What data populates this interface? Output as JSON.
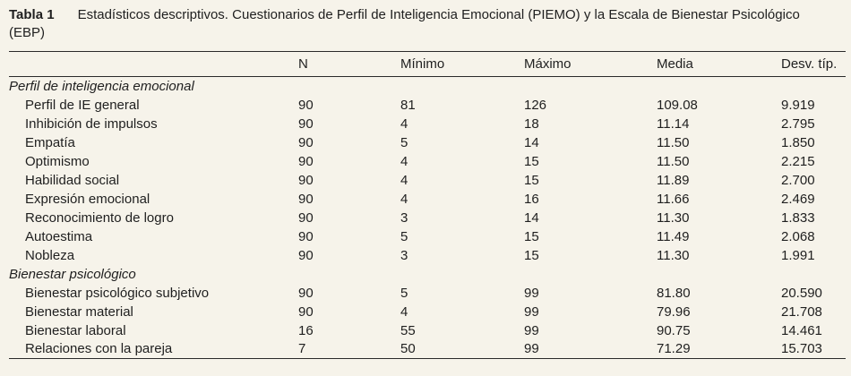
{
  "page": {
    "background_color": "#f6f3ea",
    "text_color": "#1f1f1f",
    "rule_color": "#2a2a2a"
  },
  "caption": {
    "label": "Tabla 1",
    "line1": "Estadísticos descriptivos. Cuestionarios de Perfil de Inteligencia Emocional (PIEMO) y la Escala de Bienestar Psicológico",
    "line2": "(EBP)"
  },
  "table": {
    "columns": [
      "N",
      "Mínimo",
      "Máximo",
      "Media",
      "Desv. típ."
    ],
    "sections": [
      {
        "label": "Perfil de inteligencia emocional",
        "rows": [
          [
            "Perfil de IE general",
            "90",
            "81",
            "126",
            "109.08",
            "9.919"
          ],
          [
            "Inhibición de impulsos",
            "90",
            "4",
            "18",
            "11.14",
            "2.795"
          ],
          [
            "Empatía",
            "90",
            "5",
            "14",
            "11.50",
            "1.850"
          ],
          [
            "Optimismo",
            "90",
            "4",
            "15",
            "11.50",
            "2.215"
          ],
          [
            "Habilidad social",
            "90",
            "4",
            "15",
            "11.89",
            "2.700"
          ],
          [
            "Expresión emocional",
            "90",
            "4",
            "16",
            "11.66",
            "2.469"
          ],
          [
            "Reconocimiento de logro",
            "90",
            "3",
            "14",
            "11.30",
            "1.833"
          ],
          [
            "Autoestima",
            "90",
            "5",
            "15",
            "11.49",
            "2.068"
          ],
          [
            "Nobleza",
            "90",
            "3",
            "15",
            "11.30",
            "1.991"
          ]
        ]
      },
      {
        "label": "Bienestar psicológico",
        "rows": [
          [
            "Bienestar psicológico subjetivo",
            "90",
            "5",
            "99",
            "81.80",
            "20.590"
          ],
          [
            "Bienestar material",
            "90",
            "4",
            "99",
            "79.96",
            "21.708"
          ],
          [
            "Bienestar laboral",
            "16",
            "55",
            "99",
            "90.75",
            "14.461"
          ],
          [
            "Relaciones con la pareja",
            "7",
            "50",
            "99",
            "71.29",
            "15.703"
          ]
        ]
      }
    ]
  }
}
